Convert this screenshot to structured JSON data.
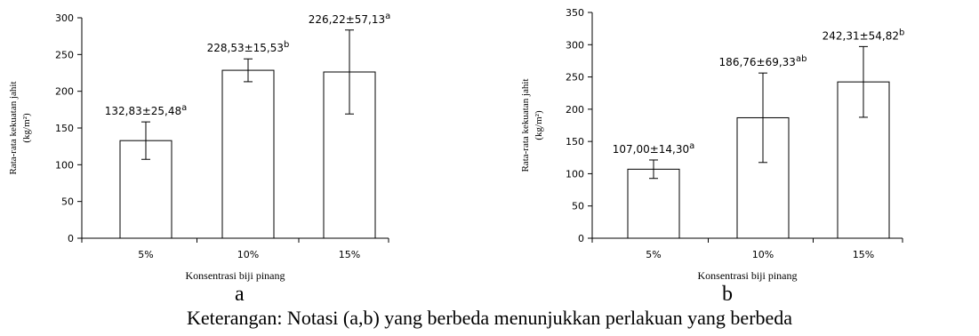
{
  "chart_data": [
    {
      "type": "bar",
      "panel_label": "a",
      "categories": [
        "5%",
        "10%",
        "15%"
      ],
      "values": [
        132.83,
        228.53,
        226.22
      ],
      "errors": [
        25.48,
        15.53,
        57.13
      ],
      "value_labels": [
        "132,83±25,48",
        "228,53±15,53",
        "226,22±57,13"
      ],
      "notations": [
        "a",
        "b",
        "a"
      ],
      "xlabel": "Konsentrasi biji pinang",
      "ylabel_line1": "Rata-rata kekuatan jahit",
      "ylabel_line2": "(kg/m²)",
      "ylim": [
        0,
        300
      ],
      "yticks": [
        0,
        50,
        100,
        150,
        200,
        250,
        300
      ],
      "grid": false,
      "legend": "none"
    },
    {
      "type": "bar",
      "panel_label": "b",
      "categories": [
        "5%",
        "10%",
        "15%"
      ],
      "values": [
        107.0,
        186.76,
        242.31
      ],
      "errors": [
        14.3,
        69.33,
        54.82
      ],
      "value_labels": [
        "107,00±14,30",
        "186,76±69,33",
        "242,31±54,82"
      ],
      "notations": [
        "a",
        "ab",
        "b"
      ],
      "xlabel": "Konsentrasi biji pinang",
      "ylabel_line1": "Rata-rata kekuatan jahit",
      "ylabel_line2": "(kg/m²)",
      "ylim": [
        0,
        350
      ],
      "yticks": [
        0,
        50,
        100,
        150,
        200,
        250,
        300,
        350
      ],
      "grid": false,
      "legend": "none"
    }
  ],
  "caption": "Keterangan: Notasi (a,b) yang berbeda menunjukkan perlakuan yang berbeda"
}
